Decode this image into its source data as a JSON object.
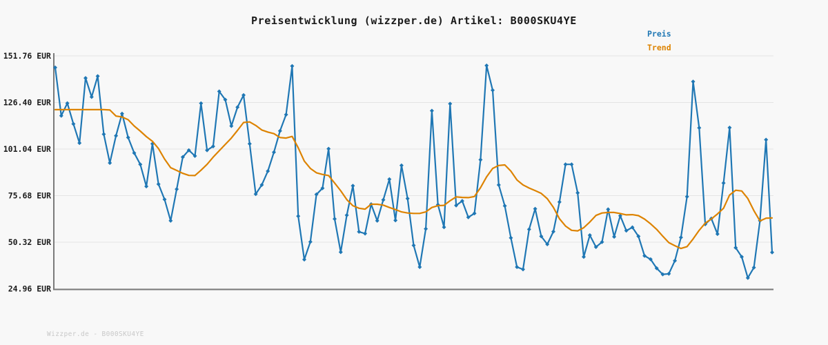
{
  "header": {
    "title": "Preisentwicklung (wizzper.de) Artikel: B000SKU4YE"
  },
  "legend": {
    "items": [
      {
        "label": "Preis",
        "color": "#1f77b4"
      },
      {
        "label": "Trend",
        "color": "#dd8300"
      }
    ]
  },
  "footer": {
    "watermark": "Wizzper.de - B000SKU4YE"
  },
  "colors": {
    "background": "#f8f8f8",
    "gridline": "#e4e4e4",
    "axis_spine": "#7a7a7a",
    "price_line": "#1f77b4",
    "trend_line": "#dd8300"
  },
  "chart_data": {
    "type": "line",
    "title": "Preisentwicklung (wizzper.de) Artikel: B000SKU4YE",
    "xlabel": "",
    "ylabel": "",
    "x_tick_labels": [],
    "ylim": [
      24.96,
      151.76
    ],
    "grid": "horizontal",
    "legend_position": "top-right",
    "y_ticks": [
      {
        "value": 151.76,
        "label": "151.76 EUR"
      },
      {
        "value": 126.4,
        "label": "126.40 EUR"
      },
      {
        "value": 101.04,
        "label": "101.04 EUR"
      },
      {
        "value": 75.68,
        "label": "75.68 EUR"
      },
      {
        "value": 50.32,
        "label": "50.32 EUR"
      },
      {
        "value": 24.96,
        "label": "24.96 EUR"
      }
    ],
    "series": [
      {
        "name": "Preis",
        "color": "#1f77b4",
        "marker": "diamond",
        "values": [
          145.4,
          119.2,
          126.0,
          114.7,
          104.3,
          139.7,
          129.4,
          140.7,
          109.1,
          93.5,
          108.3,
          120.3,
          107.3,
          98.9,
          92.7,
          80.7,
          103.9,
          81.9,
          73.6,
          62.0,
          79.2,
          96.7,
          100.4,
          97.3,
          125.9,
          100.4,
          102.5,
          132.4,
          127.9,
          113.6,
          123.8,
          130.4,
          103.9,
          76.5,
          81.5,
          89.0,
          99.3,
          110.9,
          119.8,
          146.2,
          64.5,
          40.9,
          50.5,
          76.3,
          79.7,
          101.2,
          63.0,
          44.9,
          65.0,
          81.0,
          56.0,
          55.0,
          71.0,
          62.0,
          73.4,
          84.6,
          62.2,
          92.1,
          74.1,
          48.6,
          36.8,
          57.6,
          121.9,
          70.7,
          58.5,
          125.7,
          70.3,
          72.8,
          63.9,
          66.0,
          95.2,
          146.5,
          133.1,
          81.5,
          70.1,
          52.7,
          36.8,
          35.5,
          57.3,
          68.5,
          53.5,
          49.2,
          56.1,
          72.2,
          92.7,
          92.7,
          77.2,
          42.3,
          54.1,
          47.7,
          50.4,
          68.2,
          53.3,
          64.7,
          56.6,
          58.4,
          53.5,
          42.9,
          41.0,
          36.1,
          32.8,
          33.1,
          40.2,
          52.9,
          75.1,
          137.8,
          112.6,
          60.1,
          63.2,
          54.8,
          82.5,
          112.7,
          47.3,
          42.3,
          30.9,
          36.5,
          62.0,
          106.1,
          44.8
        ]
      },
      {
        "name": "Trend",
        "color": "#dd8300",
        "marker": "none",
        "values": [
          122.5,
          122.5,
          122.5,
          122.5,
          122.5,
          122.5,
          122.5,
          122.5,
          122.5,
          122.3,
          119.0,
          118.5,
          117.0,
          113.6,
          110.8,
          107.8,
          105.3,
          101.3,
          95.6,
          90.9,
          89.4,
          87.8,
          86.7,
          86.6,
          89.5,
          92.7,
          96.6,
          100.1,
          103.6,
          107.0,
          111.2,
          115.5,
          115.8,
          113.9,
          111.4,
          110.3,
          109.4,
          107.3,
          107.0,
          107.9,
          101.7,
          94.5,
          90.5,
          88.1,
          87.2,
          86.6,
          82.5,
          78.3,
          73.5,
          70.2,
          68.8,
          68.3,
          71.0,
          71.0,
          70.5,
          69.2,
          68.1,
          66.8,
          66.2,
          66.0,
          66.0,
          66.8,
          69.2,
          70.2,
          70.4,
          72.9,
          75.0,
          74.7,
          74.6,
          75.2,
          80.0,
          85.9,
          90.5,
          92.1,
          92.4,
          89.0,
          84.2,
          81.5,
          79.8,
          78.4,
          76.9,
          74.0,
          69.3,
          63.1,
          59.1,
          56.8,
          56.5,
          58.2,
          61.3,
          64.9,
          66.2,
          66.5,
          66.5,
          65.9,
          65.2,
          65.3,
          64.8,
          62.9,
          60.3,
          57.3,
          53.6,
          50.1,
          48.4,
          46.9,
          47.9,
          52.1,
          56.8,
          60.7,
          63.0,
          65.7,
          68.8,
          76.0,
          78.6,
          78.2,
          74.1,
          67.5,
          61.9,
          63.4,
          63.5
        ]
      }
    ]
  }
}
